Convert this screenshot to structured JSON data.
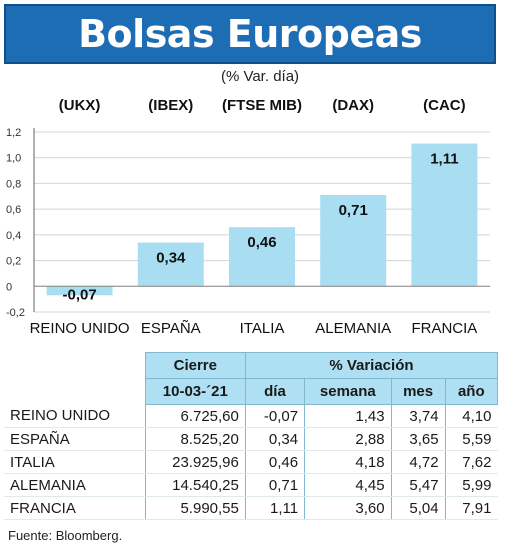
{
  "header": {
    "title": "Bolsas Europeas",
    "subtitle": "(% Var. día)"
  },
  "chart_data": {
    "type": "bar",
    "index_labels": [
      "(UKX)",
      "(IBEX)",
      "(FTSE MIB)",
      "(DAX)",
      "(CAC)"
    ],
    "categories": [
      "REINO UNIDO",
      "ESPAÑA",
      "ITALIA",
      "ALEMANIA",
      "FRANCIA"
    ],
    "values": [
      -0.07,
      0.34,
      0.46,
      0.71,
      1.11
    ],
    "value_labels": [
      "-0,07",
      "0,34",
      "0,46",
      "0,71",
      "1,11"
    ],
    "ylim": [
      -0.2,
      1.2
    ],
    "yticks": [
      -0.2,
      0,
      0.2,
      0.4,
      0.6,
      0.8,
      1.0,
      1.2
    ],
    "ytick_labels": [
      "-0,2",
      "0",
      "0,2",
      "0,4",
      "0,6",
      "0,8",
      "1,0",
      "1,2"
    ],
    "bar_color": "#a9def2",
    "grid": true
  },
  "table": {
    "group_headers": [
      "Cierre",
      "% Variación"
    ],
    "date": "10-03-´21",
    "columns": [
      "día",
      "semana",
      "mes",
      "año"
    ],
    "rows": [
      {
        "name": "REINO UNIDO",
        "cierre": "6.725,60",
        "dia": "-0,07",
        "semana": "1,43",
        "mes": "3,74",
        "ano": "4,10"
      },
      {
        "name": "ESPAÑA",
        "cierre": "8.525,20",
        "dia": "0,34",
        "semana": "2,88",
        "mes": "3,65",
        "ano": "5,59"
      },
      {
        "name": "ITALIA",
        "cierre": "23.925,96",
        "dia": "0,46",
        "semana": "4,18",
        "mes": "4,72",
        "ano": "7,62"
      },
      {
        "name": "ALEMANIA",
        "cierre": "14.540,25",
        "dia": "0,71",
        "semana": "4,45",
        "mes": "5,47",
        "ano": "5,99"
      },
      {
        "name": "FRANCIA",
        "cierre": "5.990,55",
        "dia": "1,11",
        "semana": "3,60",
        "mes": "5,04",
        "ano": "7,91"
      }
    ]
  },
  "footer": {
    "source": "Fuente: Bloomberg."
  },
  "colors": {
    "header_bg": "#1d6db5",
    "table_header_bg": "#aedff2"
  }
}
